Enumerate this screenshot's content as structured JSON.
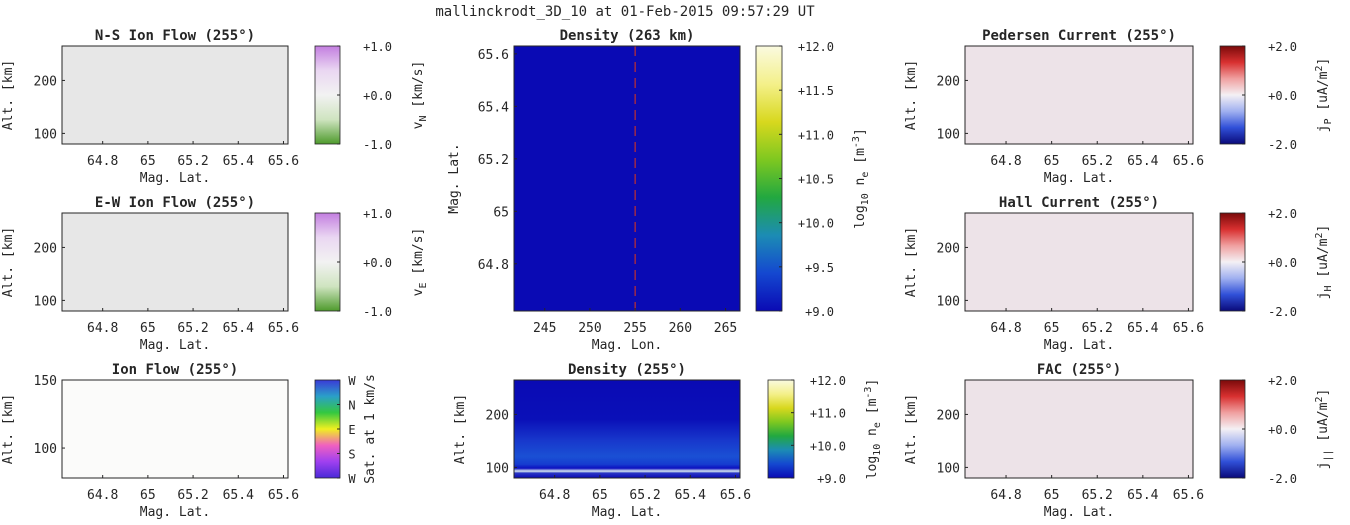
{
  "figure_title": "mallinckrodt_3D_10 at 01-Feb-2015 09:57:29 UT",
  "chart_data": [
    {
      "id": "ns-flow",
      "type": "heatmap",
      "title": "N-S Ion Flow (255°)",
      "xlabel": "Mag. Lat.",
      "ylabel": "Alt. [km]",
      "xlim": [
        64.62,
        65.62
      ],
      "ylim": [
        80,
        265
      ],
      "xticks": [
        "64.8",
        "65",
        "65.2",
        "65.4",
        "65.6"
      ],
      "xtick_values": [
        64.8,
        65.0,
        65.2,
        65.4,
        65.6
      ],
      "yticks": [
        "100",
        "200"
      ],
      "ytick_values": [
        100,
        200
      ],
      "fill": "#e7e7e7",
      "colorbar": {
        "ticks": [
          "+1.0",
          "+0.0",
          "-1.0"
        ],
        "label_main": "v",
        "label_sub": "N",
        "label_tail": " [km/s]",
        "colors": [
          "#c37ee0",
          "#ead7f2",
          "#f2f2f2",
          "#cfe4c0",
          "#4e9a2c"
        ]
      }
    },
    {
      "id": "ew-flow",
      "type": "heatmap",
      "title": "E-W Ion Flow (255°)",
      "xlabel": "Mag. Lat.",
      "ylabel": "Alt. [km]",
      "xlim": [
        64.62,
        65.62
      ],
      "ylim": [
        80,
        265
      ],
      "xticks": [
        "64.8",
        "65",
        "65.2",
        "65.4",
        "65.6"
      ],
      "xtick_values": [
        64.8,
        65.0,
        65.2,
        65.4,
        65.6
      ],
      "yticks": [
        "100",
        "200"
      ],
      "ytick_values": [
        100,
        200
      ],
      "fill": "#e7e7e7",
      "colorbar": {
        "ticks": [
          "+1.0",
          "+0.0",
          "-1.0"
        ],
        "label_main": "v",
        "label_sub": "E",
        "label_tail": " [km/s]",
        "colors": [
          "#c37ee0",
          "#ead7f2",
          "#f2f2f2",
          "#cfe4c0",
          "#4e9a2c"
        ]
      }
    },
    {
      "id": "ion-flow",
      "type": "heatmap",
      "title": "Ion Flow (255°)",
      "xlabel": "Mag. Lat.",
      "ylabel": "Alt. [km]",
      "xlim": [
        64.62,
        65.62
      ],
      "ylim": [
        78,
        150
      ],
      "xticks": [
        "64.8",
        "65",
        "65.2",
        "65.4",
        "65.6"
      ],
      "xtick_values": [
        64.8,
        65.0,
        65.2,
        65.4,
        65.6
      ],
      "yticks": [
        "100",
        "150"
      ],
      "ytick_values": [
        100,
        150
      ],
      "fill": "#fbfbfa",
      "colorbar": {
        "ticks": [
          "W",
          "N",
          "E",
          "S",
          "W"
        ],
        "label_main": "Sat. at 1 km/s",
        "label_sub": "",
        "label_tail": "",
        "colors": [
          "#3a3ad8",
          "#2aa0c8",
          "#34c840",
          "#f0f020",
          "#f060c0",
          "#a040f0",
          "#4a2ad8"
        ]
      }
    },
    {
      "id": "density-map",
      "type": "heatmap",
      "title": "Density (263 km)",
      "xlabel": "Mag. Lon.",
      "ylabel": "Mag. Lat.",
      "xlim": [
        241.6,
        266.6
      ],
      "ylim": [
        64.62,
        65.63
      ],
      "xticks": [
        "245",
        "250",
        "255",
        "260",
        "265"
      ],
      "xtick_values": [
        245,
        250,
        255,
        260,
        265
      ],
      "yticks": [
        "64.8",
        "65",
        "65.2",
        "65.4",
        "65.6"
      ],
      "ytick_values": [
        64.8,
        65.0,
        65.2,
        65.4,
        65.6
      ],
      "fill": "#0a0ab4",
      "cut_line_lon": 255,
      "colorbar": {
        "ticks": [
          "+12.0",
          "+11.5",
          "+11.0",
          "+10.5",
          "+10.0",
          "+9.5",
          "+9.0"
        ],
        "label_main": "log",
        "label_sub": "10",
        "label_tail": " n",
        "label_sub2": "e",
        "label_tail2": " [m",
        "label_sup": "-3",
        "label_end": "]",
        "colors": [
          "#fafae0",
          "#f4f08a",
          "#d8d81e",
          "#7ec820",
          "#22a840",
          "#1c8cb4",
          "#1448d0",
          "#0a0ab4"
        ]
      }
    },
    {
      "id": "density-alt",
      "type": "heatmap",
      "title": "Density (255°)",
      "xlabel": "Mag. Lat.",
      "ylabel": "Alt. [km]",
      "xlim": [
        64.62,
        65.62
      ],
      "ylim": [
        80,
        265
      ],
      "xticks": [
        "64.8",
        "65",
        "65.2",
        "65.4",
        "65.6"
      ],
      "xtick_values": [
        64.8,
        65.0,
        65.2,
        65.4,
        65.6
      ],
      "yticks": [
        "100",
        "200"
      ],
      "ytick_values": [
        100,
        200
      ],
      "fill": "#0a0ab4",
      "colorbar": {
        "ticks": [
          "+12.0",
          "+11.0",
          "+10.0",
          "+9.0"
        ],
        "label_main": "log",
        "label_sub": "10",
        "label_tail": " n",
        "label_sub2": "e",
        "label_tail2": " [m",
        "label_sup": "-3",
        "label_end": "]",
        "colors": [
          "#fafae0",
          "#f4f08a",
          "#d8d81e",
          "#7ec820",
          "#22a840",
          "#1c8cb4",
          "#1448d0",
          "#0a0ab4"
        ]
      }
    },
    {
      "id": "pedersen",
      "type": "heatmap",
      "title": "Pedersen Current (255°)",
      "xlabel": "Mag. Lat.",
      "ylabel": "Alt. [km]",
      "xlim": [
        64.62,
        65.62
      ],
      "ylim": [
        80,
        265
      ],
      "xticks": [
        "64.8",
        "65",
        "65.2",
        "65.4",
        "65.6"
      ],
      "xtick_values": [
        64.8,
        65.0,
        65.2,
        65.4,
        65.6
      ],
      "yticks": [
        "100",
        "200"
      ],
      "ytick_values": [
        100,
        200
      ],
      "fill": "#ede3e8",
      "colorbar": {
        "ticks": [
          "+2.0",
          "+0.0",
          "-2.0"
        ],
        "label_main": "j",
        "label_sub": "P",
        "label_tail": " [uA/m",
        "label_sup": "2",
        "label_end": "]",
        "colors": [
          "#7a0a0a",
          "#d83030",
          "#f0a0a0",
          "#f4f0f4",
          "#a0b0f0",
          "#3050d8",
          "#0a0a7a"
        ]
      }
    },
    {
      "id": "hall",
      "type": "heatmap",
      "title": "Hall Current (255°)",
      "xlabel": "Mag. Lat.",
      "ylabel": "Alt. [km]",
      "xlim": [
        64.62,
        65.62
      ],
      "ylim": [
        80,
        265
      ],
      "xticks": [
        "64.8",
        "65",
        "65.2",
        "65.4",
        "65.6"
      ],
      "xtick_values": [
        64.8,
        65.0,
        65.2,
        65.4,
        65.6
      ],
      "yticks": [
        "100",
        "200"
      ],
      "ytick_values": [
        100,
        200
      ],
      "fill": "#ede3e8",
      "colorbar": {
        "ticks": [
          "+2.0",
          "+0.0",
          "-2.0"
        ],
        "label_main": "j",
        "label_sub": "H",
        "label_tail": " [uA/m",
        "label_sup": "2",
        "label_end": "]",
        "colors": [
          "#7a0a0a",
          "#d83030",
          "#f0a0a0",
          "#f4f0f4",
          "#a0b0f0",
          "#3050d8",
          "#0a0a7a"
        ]
      }
    },
    {
      "id": "fac",
      "type": "heatmap",
      "title": "FAC (255°)",
      "xlabel": "Mag. Lat.",
      "ylabel": "Alt. [km]",
      "xlim": [
        64.62,
        65.62
      ],
      "ylim": [
        80,
        265
      ],
      "xticks": [
        "64.8",
        "65",
        "65.2",
        "65.4",
        "65.6"
      ],
      "xtick_values": [
        64.8,
        65.0,
        65.2,
        65.4,
        65.6
      ],
      "yticks": [
        "100",
        "200"
      ],
      "ytick_values": [
        100,
        200
      ],
      "fill": "#ede3e8",
      "colorbar": {
        "ticks": [
          "+2.0",
          "+0.0",
          "-2.0"
        ],
        "label_main": "j",
        "label_sub": "||",
        "label_tail": " [uA/m",
        "label_sup": "2",
        "label_end": "]",
        "colors": [
          "#7a0a0a",
          "#d83030",
          "#f0a0a0",
          "#f4f0f4",
          "#a0b0f0",
          "#3050d8",
          "#0a0a7a"
        ]
      }
    }
  ]
}
